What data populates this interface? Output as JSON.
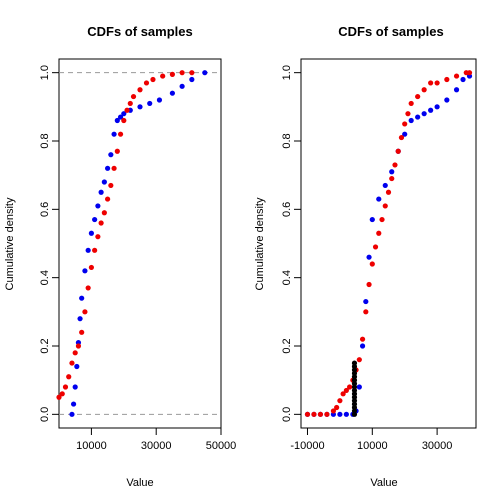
{
  "colors": {
    "series_a": "#0000ee",
    "series_b": "#ee0000",
    "overlay": "#000000",
    "reference_line": "#999999"
  },
  "chart_data": [
    {
      "type": "scatter",
      "title": "CDFs of samples",
      "xlabel": "Value",
      "ylabel": "Cumulative density",
      "xlim": [
        0,
        50000
      ],
      "ylim": [
        -0.04,
        1.04
      ],
      "xticks": [
        10000,
        30000,
        50000
      ],
      "xtick_labels": [
        "10000",
        "30000",
        "50000"
      ],
      "yticks": [
        0.0,
        0.2,
        0.4,
        0.6,
        0.8,
        1.0
      ],
      "ytick_labels": [
        "0.0",
        "0.2",
        "0.4",
        "0.6",
        "0.8",
        "1.0"
      ],
      "reference_lines_y": [
        0,
        1
      ],
      "grid": false,
      "legend": "none",
      "series": [
        {
          "color": "#0000ee",
          "x": [
            4000,
            4500,
            5000,
            5500,
            6000,
            6500,
            7000,
            8000,
            9000,
            10000,
            11000,
            12000,
            13000,
            14000,
            15000,
            16000,
            17000,
            18000,
            19000,
            20000,
            22000,
            25000,
            28000,
            31000,
            35000,
            38000,
            41000,
            45000
          ],
          "y": [
            0.0,
            0.03,
            0.08,
            0.14,
            0.21,
            0.28,
            0.34,
            0.42,
            0.48,
            0.53,
            0.57,
            0.61,
            0.65,
            0.68,
            0.72,
            0.76,
            0.82,
            0.86,
            0.87,
            0.88,
            0.89,
            0.9,
            0.91,
            0.92,
            0.94,
            0.96,
            0.98,
            1.0
          ]
        },
        {
          "color": "#ee0000",
          "x": [
            0,
            1000,
            2000,
            3000,
            4000,
            5000,
            6000,
            7000,
            8000,
            9000,
            10000,
            11000,
            12000,
            13000,
            14000,
            15000,
            16000,
            17000,
            18000,
            19000,
            20000,
            21000,
            22000,
            23000,
            25000,
            27000,
            29000,
            32000,
            35000,
            38000,
            41000
          ],
          "y": [
            0.05,
            0.06,
            0.08,
            0.11,
            0.15,
            0.18,
            0.2,
            0.24,
            0.3,
            0.37,
            0.43,
            0.48,
            0.52,
            0.56,
            0.59,
            0.63,
            0.67,
            0.72,
            0.77,
            0.82,
            0.86,
            0.89,
            0.91,
            0.93,
            0.95,
            0.97,
            0.98,
            0.99,
            0.995,
            1.0,
            1.0
          ]
        }
      ]
    },
    {
      "type": "scatter",
      "title": "CDFs of samples",
      "xlabel": "Value",
      "ylabel": "Cumulative density",
      "xlim": [
        -12000,
        42000
      ],
      "ylim": [
        -0.04,
        1.04
      ],
      "xticks": [
        -10000,
        10000,
        30000
      ],
      "xtick_labels": [
        "-10000",
        "10000",
        "30000"
      ],
      "yticks": [
        0.0,
        0.2,
        0.4,
        0.6,
        0.8,
        1.0
      ],
      "ytick_labels": [
        "0.0",
        "0.2",
        "0.4",
        "0.6",
        "0.8",
        "1.0"
      ],
      "grid": false,
      "legend": "none",
      "series": [
        {
          "color": "#0000ee",
          "x": [
            -10000,
            -8000,
            -6000,
            -4000,
            -2000,
            0,
            2000,
            4000,
            5000,
            6000,
            7000,
            8000,
            9000,
            10000,
            12000,
            14000,
            16000,
            18000,
            20000,
            22000,
            24000,
            26000,
            28000,
            30000,
            33000,
            36000,
            38000,
            40000
          ],
          "y": [
            0.0,
            0.0,
            0.0,
            0.0,
            0.0,
            0.0,
            0.0,
            0.0,
            0.01,
            0.08,
            0.2,
            0.33,
            0.46,
            0.57,
            0.63,
            0.67,
            0.71,
            0.77,
            0.82,
            0.86,
            0.87,
            0.88,
            0.89,
            0.9,
            0.92,
            0.95,
            0.98,
            0.99
          ]
        },
        {
          "color": "#ee0000",
          "x": [
            -10000,
            -8000,
            -6000,
            -4000,
            -2000,
            -1000,
            0,
            1000,
            2000,
            3000,
            4000,
            5000,
            6000,
            7000,
            8000,
            9000,
            10000,
            11000,
            12000,
            13000,
            14000,
            15000,
            16000,
            17000,
            18000,
            19000,
            20000,
            21000,
            22000,
            24000,
            26000,
            28000,
            30000,
            33000,
            36000,
            39000,
            40000
          ],
          "y": [
            0.0,
            0.0,
            0.0,
            0.0,
            0.01,
            0.02,
            0.04,
            0.06,
            0.07,
            0.08,
            0.1,
            0.13,
            0.16,
            0.22,
            0.3,
            0.38,
            0.44,
            0.49,
            0.53,
            0.57,
            0.61,
            0.65,
            0.69,
            0.73,
            0.77,
            0.81,
            0.85,
            0.88,
            0.91,
            0.93,
            0.95,
            0.97,
            0.97,
            0.98,
            0.99,
            1.0,
            1.0
          ]
        },
        {
          "color": "#000000",
          "x": [
            4500,
            4500,
            4500,
            4500,
            4500,
            4500,
            4500,
            4500,
            4500,
            4500,
            4500,
            4500,
            4500,
            4500,
            4500,
            4500
          ],
          "y": [
            0.0,
            0.01,
            0.02,
            0.03,
            0.04,
            0.05,
            0.06,
            0.07,
            0.08,
            0.09,
            0.1,
            0.11,
            0.12,
            0.13,
            0.14,
            0.15
          ]
        }
      ]
    }
  ]
}
